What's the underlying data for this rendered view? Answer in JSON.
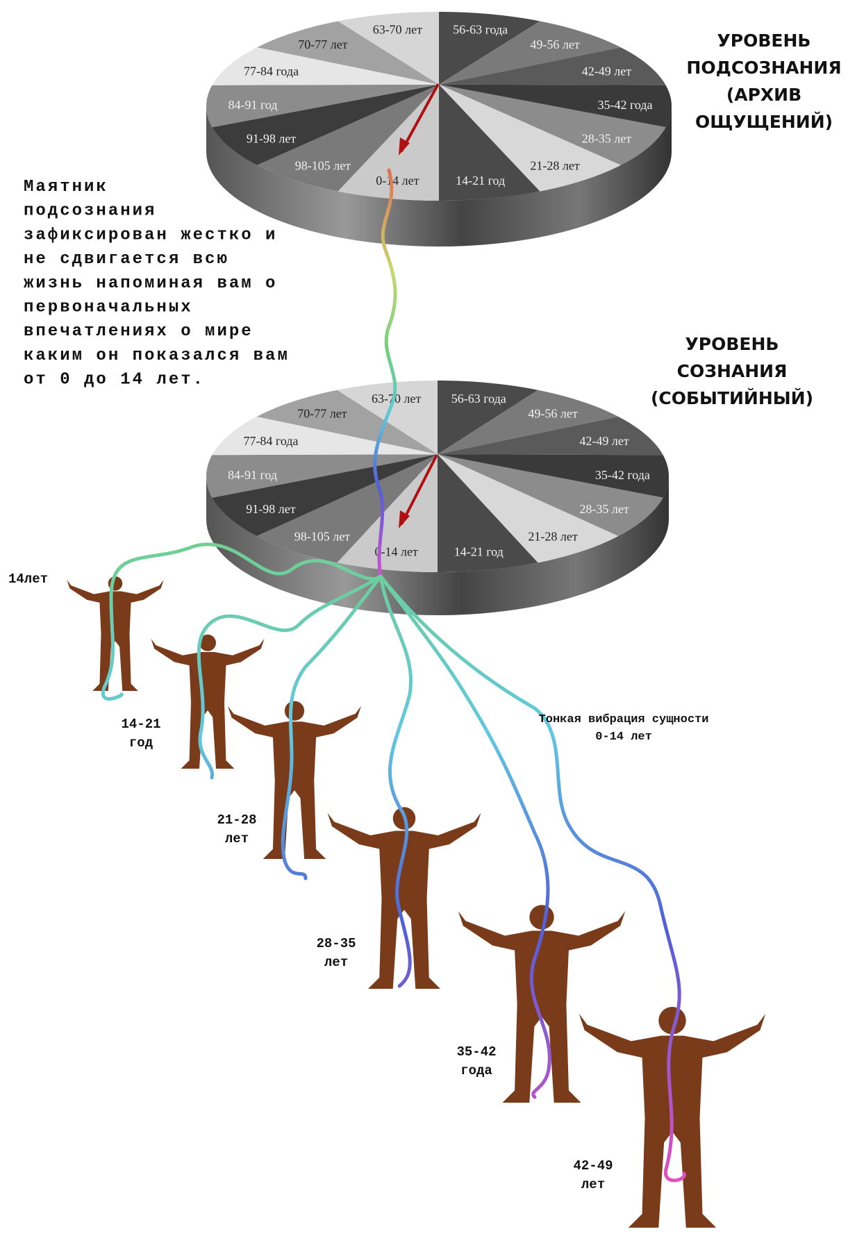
{
  "disks": [
    {
      "title": [
        "УРОВЕНЬ",
        "ПОДСОЗНАНИЯ",
        "(АРХИВ",
        "ОЩУЩЕНИЙ)"
      ],
      "segments": [
        "56-63 года",
        "49-56 лет",
        "42-49 лет",
        "35-42 года",
        "28-35 лет",
        "21-28 лет",
        "14-21 год",
        "0-14 лет",
        "98-105 лет",
        "91-98 лет",
        "84-91 год",
        "77-84 года",
        "70-77 лет",
        "63-70 лет"
      ]
    },
    {
      "title": [
        "УРОВЕНЬ",
        "СОЗНАНИЯ",
        "(СОБЫТИЙНЫЙ)"
      ],
      "segments": [
        "56-63 года",
        "49-56 лет",
        "42-49 лет",
        "35-42 года",
        "28-35 лет",
        "21-28 лет",
        "14-21 год",
        "0-14 лет",
        "98-105 лет",
        "91-98 лет",
        "84-91 год",
        "77-84 года",
        "70-77 лет",
        "63-70 лет"
      ]
    }
  ],
  "note": [
    "Маятник",
    "подсознания",
    "зафиксирован жестко и",
    "не сдвигается всю",
    "жизнь напоминая вам о",
    "первоначальных",
    "впечатлениях о мире",
    "каким он показался вам",
    "от 0 до 14 лет."
  ],
  "figures": [
    [
      "14лет"
    ],
    [
      "14-21",
      "год"
    ],
    [
      "21-28",
      "лет"
    ],
    [
      "28-35",
      "лет"
    ],
    [
      "35-42",
      "года"
    ],
    [
      "42-49",
      "лет"
    ]
  ],
  "annotation": [
    "Тонкая вибрация сущности",
    "0-14 лет"
  ]
}
